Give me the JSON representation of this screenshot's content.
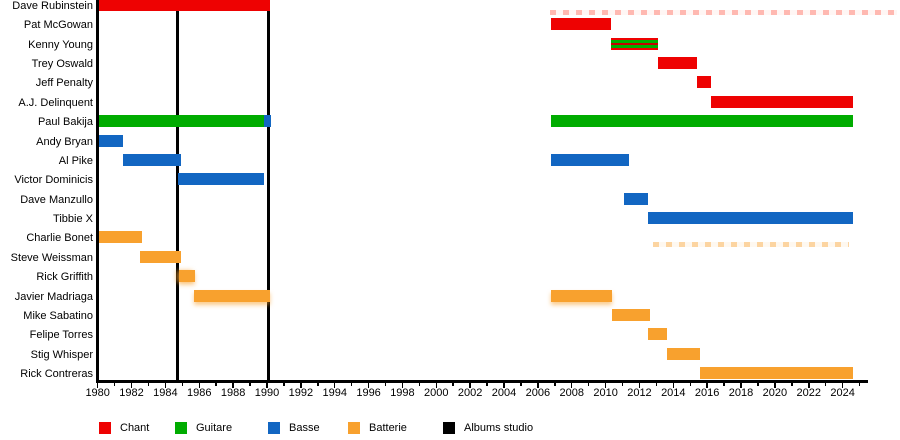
{
  "chart_data": {
    "type": "timeline-gantt",
    "description": "Band members timeline: colored bars show each member's active period per role; black vertical lines mark studio albums.",
    "x_axis": {
      "min_year": 1980,
      "max_year": 2025,
      "labeled_ticks": [
        "1980",
        "1982",
        "1984",
        "1986",
        "1988",
        "1990",
        "1992",
        "1994",
        "1996",
        "1998",
        "2000",
        "2002",
        "2004",
        "2006",
        "2008",
        "2010",
        "2012",
        "2014",
        "2016",
        "2018",
        "2020",
        "2022",
        "2024"
      ],
      "minor_tick_step_years": 1,
      "grid": "off",
      "legend_position": "bottom"
    },
    "legend": [
      {
        "label": "Chant",
        "color": "#ee0202"
      },
      {
        "label": "Guitare",
        "color": "#00ac00"
      },
      {
        "label": "Basse",
        "color": "#1266c2"
      },
      {
        "label": "Batterie",
        "color": "#f8a12e"
      },
      {
        "label": "Albums studio",
        "color": "#000000"
      }
    ],
    "albums_studio_years": [
      1984.7,
      1990.1
    ],
    "members": [
      {
        "name": "Dave Rubinstein",
        "segments": [
          {
            "roles": [
              "Chant"
            ],
            "start": 1980,
            "end": 1990.2
          },
          {
            "roles": [
              "Chant"
            ],
            "start": 2006.7,
            "end": 2027.3,
            "variant": "faded"
          }
        ]
      },
      {
        "name": "Pat McGowan",
        "segments": [
          {
            "roles": [
              "Chant"
            ],
            "start": 2006.8,
            "end": 2010.3
          }
        ]
      },
      {
        "name": "Kenny Young",
        "segments": [
          {
            "roles": [
              "Chant",
              "Guitare"
            ],
            "start": 2010.3,
            "end": 2013.1
          }
        ]
      },
      {
        "name": "Trey Oswald",
        "segments": [
          {
            "roles": [
              "Chant"
            ],
            "start": 2013.1,
            "end": 2015.4
          }
        ]
      },
      {
        "name": "Jeff Penalty",
        "segments": [
          {
            "roles": [
              "Chant"
            ],
            "start": 2015.4,
            "end": 2016.2
          }
        ]
      },
      {
        "name": "A.J. Delinquent",
        "segments": [
          {
            "roles": [
              "Chant"
            ],
            "start": 2016.2,
            "end": 2024.6
          }
        ]
      },
      {
        "name": "Paul Bakija",
        "segments": [
          {
            "roles": [
              "Guitare"
            ],
            "start": 1980,
            "end": 1989.8
          },
          {
            "roles": [
              "Basse"
            ],
            "start": 1989.8,
            "end": 1990.25
          },
          {
            "roles": [
              "Guitare"
            ],
            "start": 2006.8,
            "end": 2024.6
          }
        ]
      },
      {
        "name": "Andy Bryan",
        "segments": [
          {
            "roles": [
              "Basse"
            ],
            "start": 1980,
            "end": 1981.5
          }
        ]
      },
      {
        "name": "Al Pike",
        "segments": [
          {
            "roles": [
              "Basse"
            ],
            "start": 1981.5,
            "end": 1984.9
          },
          {
            "roles": [
              "Basse"
            ],
            "start": 2006.8,
            "end": 2011.4
          }
        ]
      },
      {
        "name": "Victor Dominicis",
        "segments": [
          {
            "roles": [
              "Basse"
            ],
            "start": 1984.75,
            "end": 1989.8
          }
        ]
      },
      {
        "name": "Dave Manzullo",
        "segments": [
          {
            "roles": [
              "Basse"
            ],
            "start": 2011.1,
            "end": 2012.5
          }
        ]
      },
      {
        "name": "Tibbie X",
        "segments": [
          {
            "roles": [
              "Basse"
            ],
            "start": 2012.5,
            "end": 2024.6
          }
        ]
      },
      {
        "name": "Charlie Bonet",
        "segments": [
          {
            "roles": [
              "Batterie"
            ],
            "start": 1980,
            "end": 1982.6
          },
          {
            "roles": [
              "Batterie"
            ],
            "start": 2012.8,
            "end": 2024.4,
            "variant": "faded"
          }
        ]
      },
      {
        "name": "Steve Weissman",
        "segments": [
          {
            "roles": [
              "Batterie"
            ],
            "start": 1982.5,
            "end": 1984.9
          }
        ]
      },
      {
        "name": "Rick Griffith",
        "segments": [
          {
            "roles": [
              "Batterie"
            ],
            "start": 1984.8,
            "end": 1985.75,
            "variant": "fuzzy-left"
          }
        ]
      },
      {
        "name": "Javier Madriaga",
        "segments": [
          {
            "roles": [
              "Batterie"
            ],
            "start": 1985.7,
            "end": 1990.2,
            "variant": "fuzzy"
          },
          {
            "roles": [
              "Batterie"
            ],
            "start": 2006.8,
            "end": 2010.4,
            "variant": "fuzzy"
          }
        ]
      },
      {
        "name": "Mike Sabatino",
        "segments": [
          {
            "roles": [
              "Batterie"
            ],
            "start": 2010.4,
            "end": 2012.6
          }
        ]
      },
      {
        "name": "Felipe Torres",
        "segments": [
          {
            "roles": [
              "Batterie"
            ],
            "start": 2012.5,
            "end": 2013.6
          }
        ]
      },
      {
        "name": "Stig Whisper",
        "segments": [
          {
            "roles": [
              "Batterie"
            ],
            "start": 2013.6,
            "end": 2015.6
          }
        ]
      },
      {
        "name": "Rick Contreras",
        "segments": [
          {
            "roles": [
              "Batterie"
            ],
            "start": 2015.6,
            "end": 2024.6
          }
        ]
      }
    ]
  }
}
